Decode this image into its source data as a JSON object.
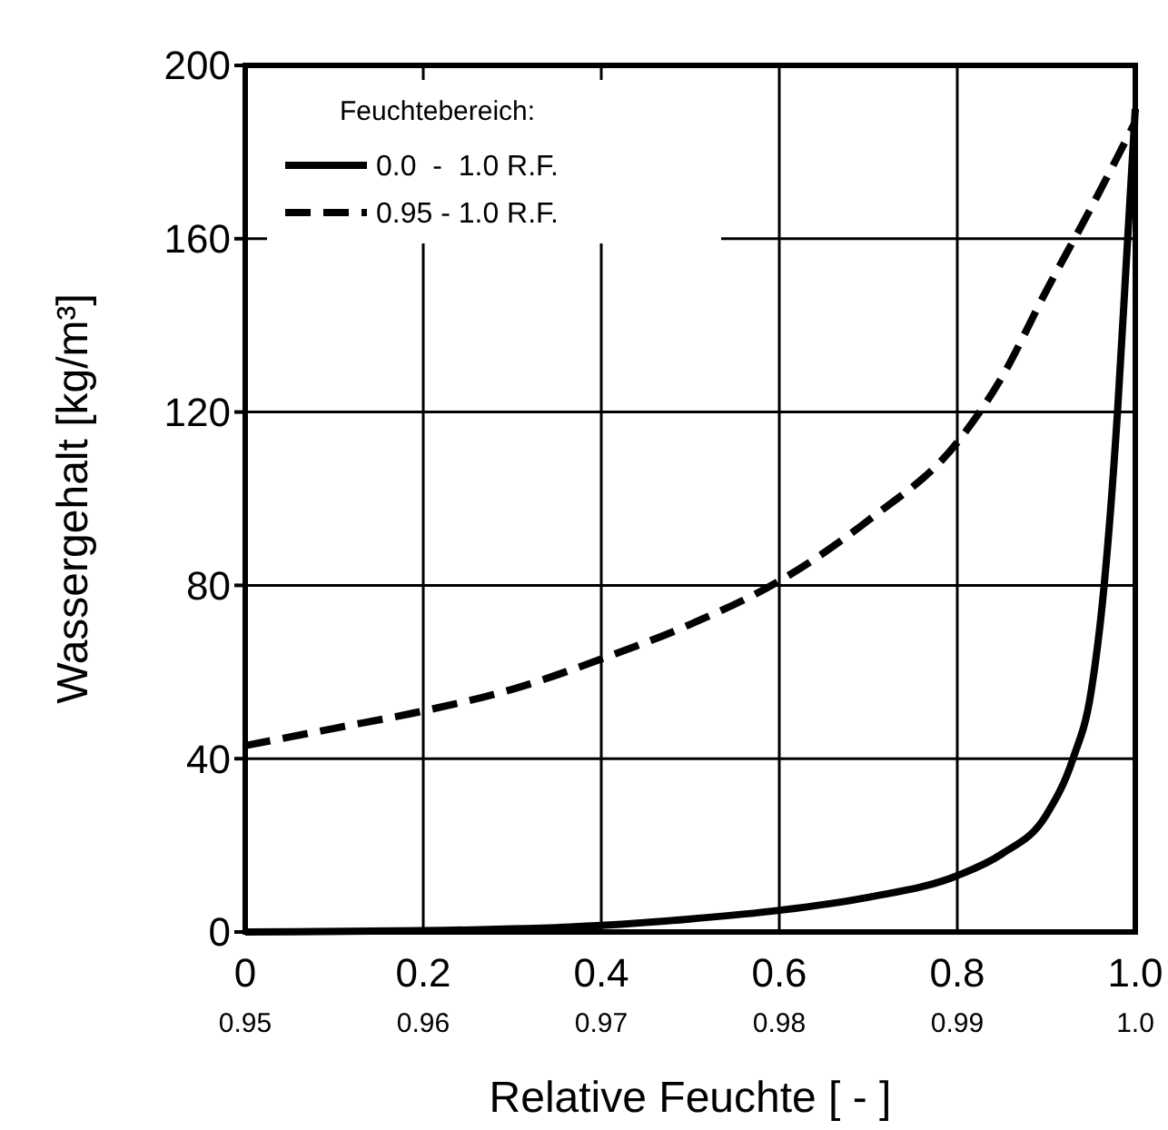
{
  "chart_data": {
    "type": "line",
    "xlabel": "Relative Feuchte [ - ]",
    "ylabel": "Wassergehalt [kg/m³]",
    "legend_title": "Feuchtebereich:",
    "xlim": [
      0,
      1.0
    ],
    "xticks": [
      0,
      0.2,
      0.4,
      0.6,
      0.8,
      {
        "value": 1.0,
        "label": "1.0"
      }
    ],
    "x2lim": [
      0.95,
      1.0
    ],
    "x2ticks": [
      0.95,
      0.96,
      0.97,
      0.98,
      0.99,
      {
        "value": 1.0,
        "label": "1.0"
      }
    ],
    "ylim": [
      0,
      200
    ],
    "yticks": [
      0,
      40,
      80,
      120,
      160,
      200
    ],
    "grid": true,
    "legend": "top left",
    "series": [
      {
        "name": "0.0  -  1.0 R.F.",
        "color": "#000000",
        "line_style": "solid",
        "x": [
          0,
          0.2,
          0.4,
          0.5,
          0.6,
          0.7,
          0.8,
          0.85,
          0.9,
          0.93,
          0.95,
          0.965,
          0.98,
          0.99,
          1.0
        ],
        "values": [
          0,
          0.3,
          1.5,
          3,
          5,
          8,
          13,
          18,
          27,
          40,
          55,
          80,
          120,
          155,
          190
        ]
      },
      {
        "name": "0.95 - 1.0 R.F.",
        "color": "#000000",
        "line_style": "dashed",
        "axis": "x2",
        "x": [
          0.95,
          0.955,
          0.96,
          0.965,
          0.97,
          0.975,
          0.98,
          0.985,
          0.99,
          0.9925,
          0.995,
          0.9975,
          1.0
        ],
        "values": [
          43,
          47,
          51,
          56,
          63,
          71,
          81,
          95,
          113,
          128,
          148,
          167,
          187
        ]
      }
    ]
  }
}
